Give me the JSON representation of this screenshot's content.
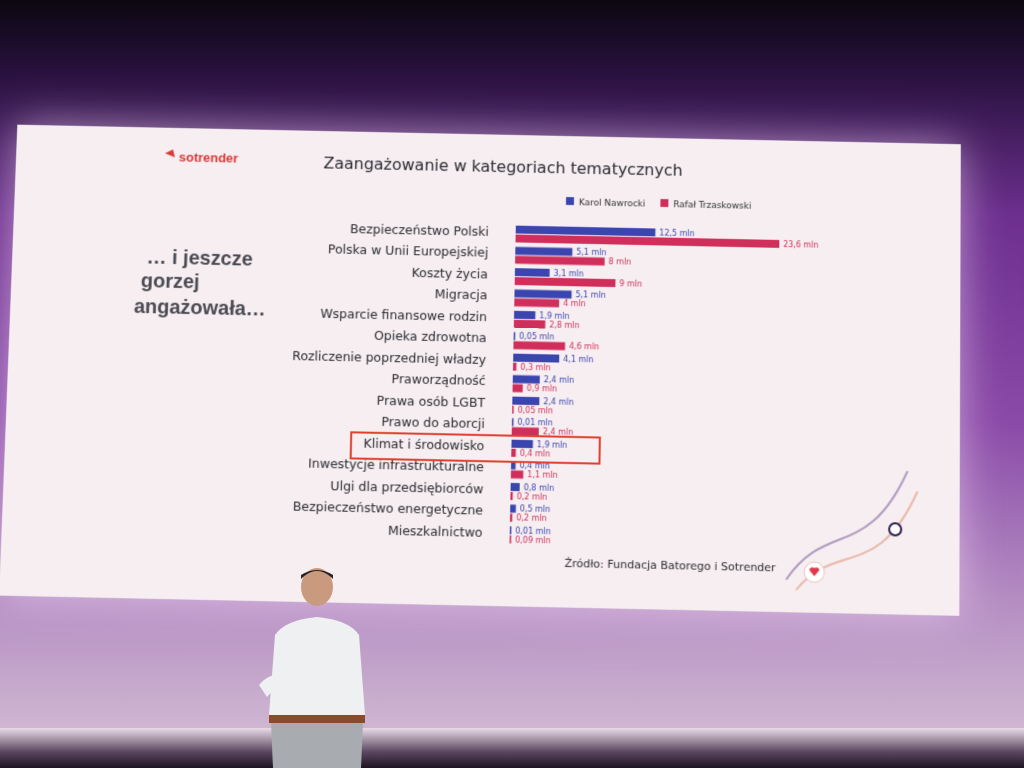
{
  "slide": {
    "logo_text": "sotrender",
    "side_text": [
      "… i jeszcze",
      "gorzej",
      "angażowała…"
    ],
    "source": "Źródło: Fundacja Batorego i Sotrender"
  },
  "chart_data": {
    "type": "bar",
    "orientation": "horizontal",
    "title": "Zaangażowanie w kategoriach tematycznych",
    "categories": [
      "Bezpieczeństwo Polski",
      "Polska w Unii Europejskiej",
      "Koszty życia",
      "Migracja",
      "Wsparcie finansowe rodzin",
      "Opieka zdrowotna",
      "Rozliczenie poprzedniej władzy",
      "Praworządność",
      "Prawa osób LGBT",
      "Prawo do aborcji",
      "Klimat i środowisko",
      "Inwestycje infrastrukturalne",
      "Ulgi dla przedsiębiorców",
      "Bezpieczeństwo energetyczne",
      "Mieszkalnictwo"
    ],
    "series": [
      {
        "name": "Karol Nawrocki",
        "color": "#3a45b0",
        "values": [
          12.5,
          5.1,
          3.1,
          5.1,
          1.9,
          0.05,
          4.1,
          2.4,
          2.4,
          0.01,
          1.9,
          0.4,
          0.8,
          0.5,
          0.01
        ],
        "labels": [
          "12,5 mln",
          "5,1 mln",
          "3,1 mln",
          "5,1 mln",
          "1,9 mln",
          "0,05 mln",
          "4,1 mln",
          "2,4 mln",
          "2,4 mln",
          "0,01 mln",
          "1,9 mln",
          "0,4 mln",
          "0,8 mln",
          "0,5 mln",
          "0,01 mln"
        ]
      },
      {
        "name": "Rafał Trzaskowski",
        "color": "#d02f5c",
        "values": [
          23.6,
          8,
          9,
          4,
          2.8,
          4.6,
          0.3,
          0.9,
          0.05,
          2.4,
          0.4,
          1.1,
          0.2,
          0.2,
          0.09
        ],
        "labels": [
          "23,6 mln",
          "8 mln",
          "9 mln",
          "4 mln",
          "2,8 mln",
          "4,6 mln",
          "0,3 mln",
          "0,9 mln",
          "0,05 mln",
          "2,4 mln",
          "0,4 mln",
          "1,1 mln",
          "0,2 mln",
          "0,2 mln",
          "0,09 mln"
        ]
      }
    ],
    "highlighted_category": "Klimat i środowisko",
    "highlight_color": "#e0412e",
    "legend_position": "top-right",
    "grid": false
  }
}
